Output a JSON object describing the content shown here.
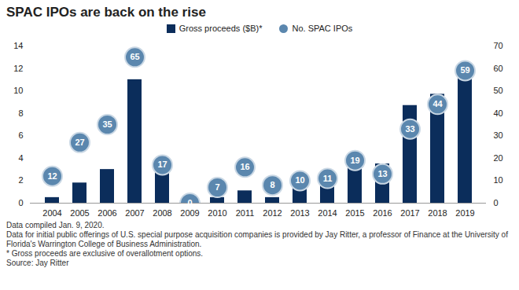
{
  "chart_data": {
    "type": "bar",
    "title": "SPAC IPOs are back on the rise",
    "categories": [
      "2004",
      "2005",
      "2006",
      "2007",
      "2008",
      "2009",
      "2010",
      "2011",
      "2012",
      "2013",
      "2014",
      "2015",
      "2016",
      "2017",
      "2018",
      "2019"
    ],
    "series": [
      {
        "name": "Gross proceeds ($B)*",
        "type": "bar",
        "color": "#0b2d5b",
        "values": [
          0.5,
          1.8,
          3.0,
          11.0,
          3.8,
          0,
          0.5,
          1.1,
          0.5,
          1.4,
          1.7,
          3.9,
          3.5,
          8.7,
          9.7,
          12.0
        ]
      },
      {
        "name": "No. SPAC IPOs",
        "type": "scatter",
        "marker": "circle",
        "color": "#5b87ae",
        "axis": "y2",
        "data_labels": true,
        "values": [
          12,
          27,
          35,
          65,
          17,
          0,
          7,
          16,
          8,
          10,
          11,
          19,
          13,
          33,
          44,
          59
        ]
      }
    ],
    "ylim": [
      0,
      14
    ],
    "yticks": [
      0,
      2,
      4,
      6,
      8,
      10,
      12,
      14
    ],
    "y2lim": [
      0,
      70
    ],
    "y2ticks": [
      0,
      10,
      20,
      30,
      40,
      50,
      60,
      70
    ],
    "legend": "top",
    "grid": false,
    "notes": [
      "Data compiled Jan. 9, 2020.",
      "Data for initial public offerings of U.S. special purpose acquisition companies is provided by Jay Ritter, a professor of Finance at the University of Florida's Warrington College of Business Administration.",
      "* Gross proceeds are exclusive of overallotment options.",
      "Source: Jay Ritter"
    ]
  }
}
